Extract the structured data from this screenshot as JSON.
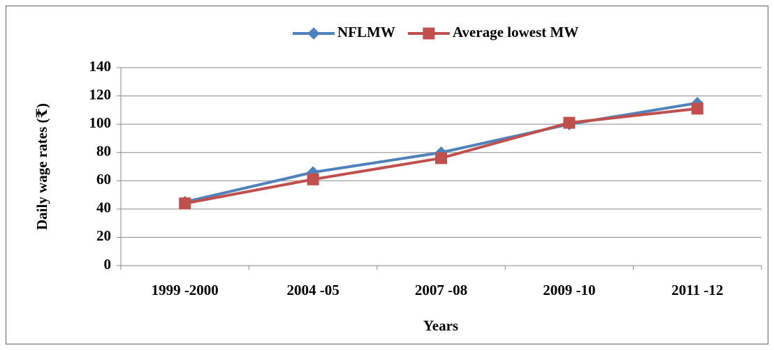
{
  "chart_data": {
    "type": "line",
    "x_label": "Years",
    "y_label": "Daily wage rates (₹)",
    "categories": [
      "1999 -2000",
      "2004 -05",
      "2007 -08",
      "2009 -10",
      "2011 -12"
    ],
    "series": [
      {
        "name": "NFLMW",
        "color": "#4f81bd",
        "marker": "diamond",
        "values": [
          45,
          66,
          80,
          100,
          115
        ]
      },
      {
        "name": "Average lowest MW",
        "color": "#c0504d",
        "marker": "square",
        "values": [
          44,
          61,
          76,
          101,
          111
        ]
      }
    ],
    "ylim": [
      0,
      140
    ],
    "yticks": [
      0,
      20,
      40,
      60,
      80,
      100,
      120,
      140
    ],
    "grid": true,
    "legend": "top"
  }
}
